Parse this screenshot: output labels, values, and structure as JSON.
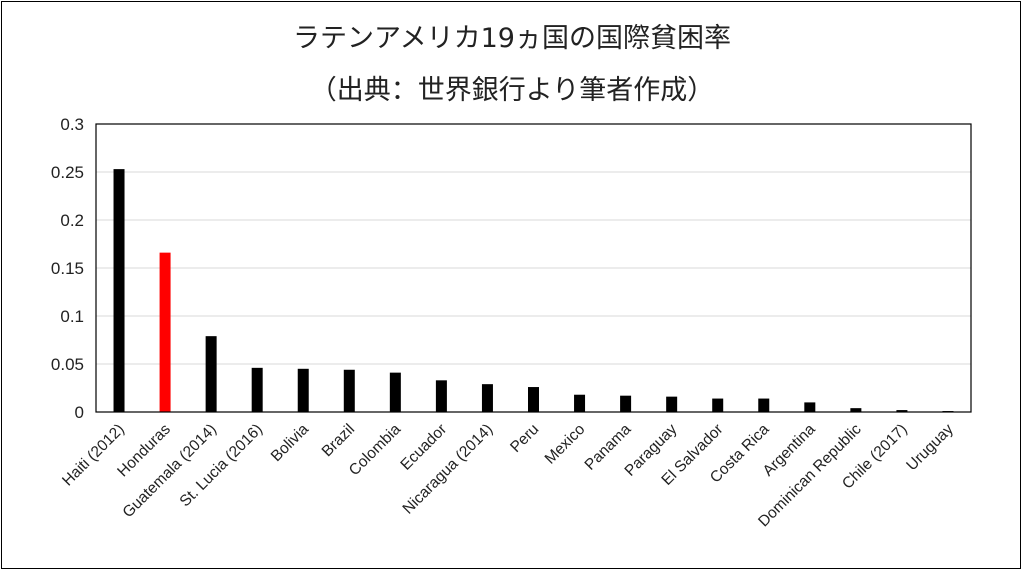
{
  "title": "ラテンアメリカ19ヵ国の国際貧困率",
  "subtitle": "（出典：世界銀行より筆者作成）",
  "colors": {
    "default": "#000000",
    "highlight": "#ff0000",
    "grid": "#d9d9d9"
  },
  "chart_data": {
    "type": "bar",
    "title": "ラテンアメリカ19ヵ国の国際貧困率",
    "subtitle": "（出典：世界銀行より筆者作成）",
    "xlabel": "",
    "ylabel": "",
    "ylim": [
      0,
      0.3
    ],
    "yticks": [
      0,
      0.05,
      0.1,
      0.15,
      0.2,
      0.25,
      0.3
    ],
    "ytick_labels": [
      "0",
      "0.05",
      "0.1",
      "0.15",
      "0.2",
      "0.25",
      "0.3"
    ],
    "grid": true,
    "legend": "none",
    "categories": [
      "Haiti (2012)",
      "Honduras",
      "Guatemala (2014)",
      "St. Lucia (2016)",
      "Bolivia",
      "Brazil",
      "Colombia",
      "Ecuador",
      "Nicaragua (2014)",
      "Peru",
      "Mexico",
      "Panama",
      "Paraguay",
      "El Salvador",
      "Costa Rica",
      "Argentina",
      "Dominican Republic",
      "Chile (2017)",
      "Uruguay"
    ],
    "values": [
      0.253,
      0.166,
      0.079,
      0.046,
      0.045,
      0.044,
      0.041,
      0.033,
      0.029,
      0.026,
      0.018,
      0.017,
      0.016,
      0.014,
      0.014,
      0.01,
      0.004,
      0.002,
      0.001
    ],
    "highlight": "Honduras"
  }
}
